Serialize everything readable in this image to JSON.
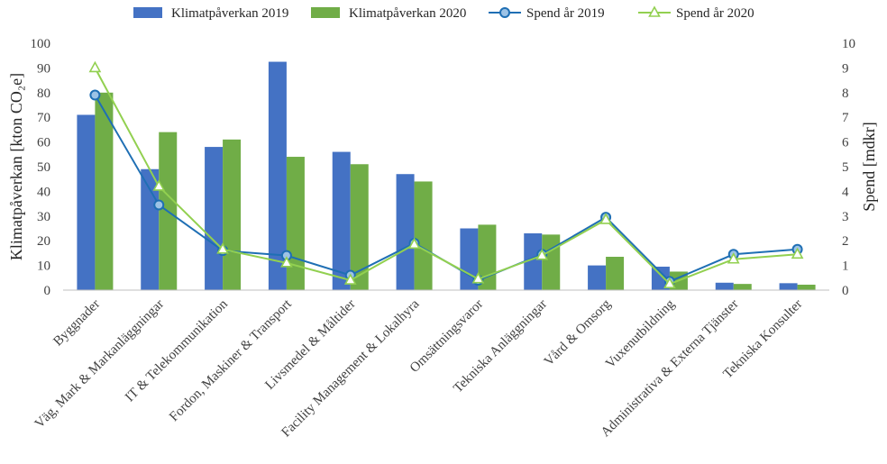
{
  "chart_data": {
    "type": "bar",
    "categories": [
      "Byggnader",
      "Väg, Mark & Markanläggningar",
      "IT & Telekommunikation",
      "Fordon, Maskiner & Transport",
      "Livsmedel & Måltider",
      "Facility Management & Lokalhyra",
      "Omsättningsvaror",
      "Tekniska Anläggningar",
      "Vård & Omsorg",
      "Vuxenutbildning",
      "Administrativa & Externa Tjänster",
      "Tekniska Konsulter"
    ],
    "bar_series": [
      {
        "name": "Klimatpåverkan 2019",
        "color": "#4472C4",
        "values": [
          71,
          49,
          58,
          92.5,
          56,
          47,
          25,
          23,
          10,
          9.5,
          3,
          2.8
        ]
      },
      {
        "name": "Klimatpåverkan 2020",
        "color": "#70AD47",
        "values": [
          80,
          64,
          61,
          54,
          51,
          44,
          26.5,
          22.5,
          13.5,
          7.5,
          2.5,
          2.2
        ]
      }
    ],
    "line_series": [
      {
        "name": "Spend år 2019",
        "color": "#1F6FB4",
        "marker": "circle",
        "marker_fill": "#9DC3E6",
        "values": [
          7.9,
          3.45,
          1.6,
          1.4,
          0.6,
          1.9,
          0.4,
          1.45,
          2.95,
          0.35,
          1.45,
          1.65
        ]
      },
      {
        "name": "Spend år 2020",
        "color": "#92D050",
        "marker": "triangle",
        "marker_fill": "#FFFFFF",
        "values": [
          9.0,
          4.2,
          1.65,
          1.1,
          0.4,
          1.85,
          0.45,
          1.4,
          2.85,
          0.25,
          1.25,
          1.45
        ]
      }
    ],
    "ylabel": "Klimatpåverkan [kton CO₂e]",
    "y2label": "Spend [mdkr]",
    "ylim": [
      0,
      100
    ],
    "y2lim": [
      0,
      10
    ],
    "yticks": [
      "0",
      "10",
      "20",
      "30",
      "40",
      "50",
      "60",
      "70",
      "80",
      "90",
      "100"
    ],
    "y2ticks": [
      "0",
      "1",
      "2",
      "3",
      "4",
      "5",
      "6",
      "7",
      "8",
      "9",
      "10"
    ],
    "grid": false,
    "legend_position": "top"
  }
}
